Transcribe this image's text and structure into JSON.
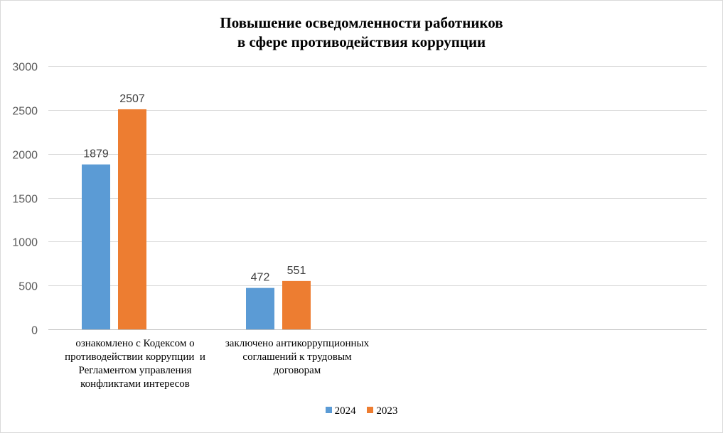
{
  "chart_data": {
    "type": "bar",
    "title": [
      "Повышение осведомленности работников",
      "в сфере противодействия коррупции"
    ],
    "categories": [
      [
        "ознакомлено с Кодексом о",
        "противодействии коррупции  и",
        "Регламентом управления",
        "конфликтами интересов"
      ],
      [
        "заключено антикоррупционных",
        "соглашений к трудовым",
        "договорам"
      ]
    ],
    "series": [
      {
        "name": "2024",
        "color": "#5b9bd5",
        "values": [
          1879,
          472
        ]
      },
      {
        "name": "2023",
        "color": "#ed7d31",
        "values": [
          2507,
          551
        ]
      }
    ],
    "ylim": [
      0,
      3000
    ],
    "yticks": [
      0,
      500,
      1000,
      1500,
      2000,
      2500,
      3000
    ],
    "grid": true,
    "legend_position": "bottom",
    "data_labels": true
  }
}
